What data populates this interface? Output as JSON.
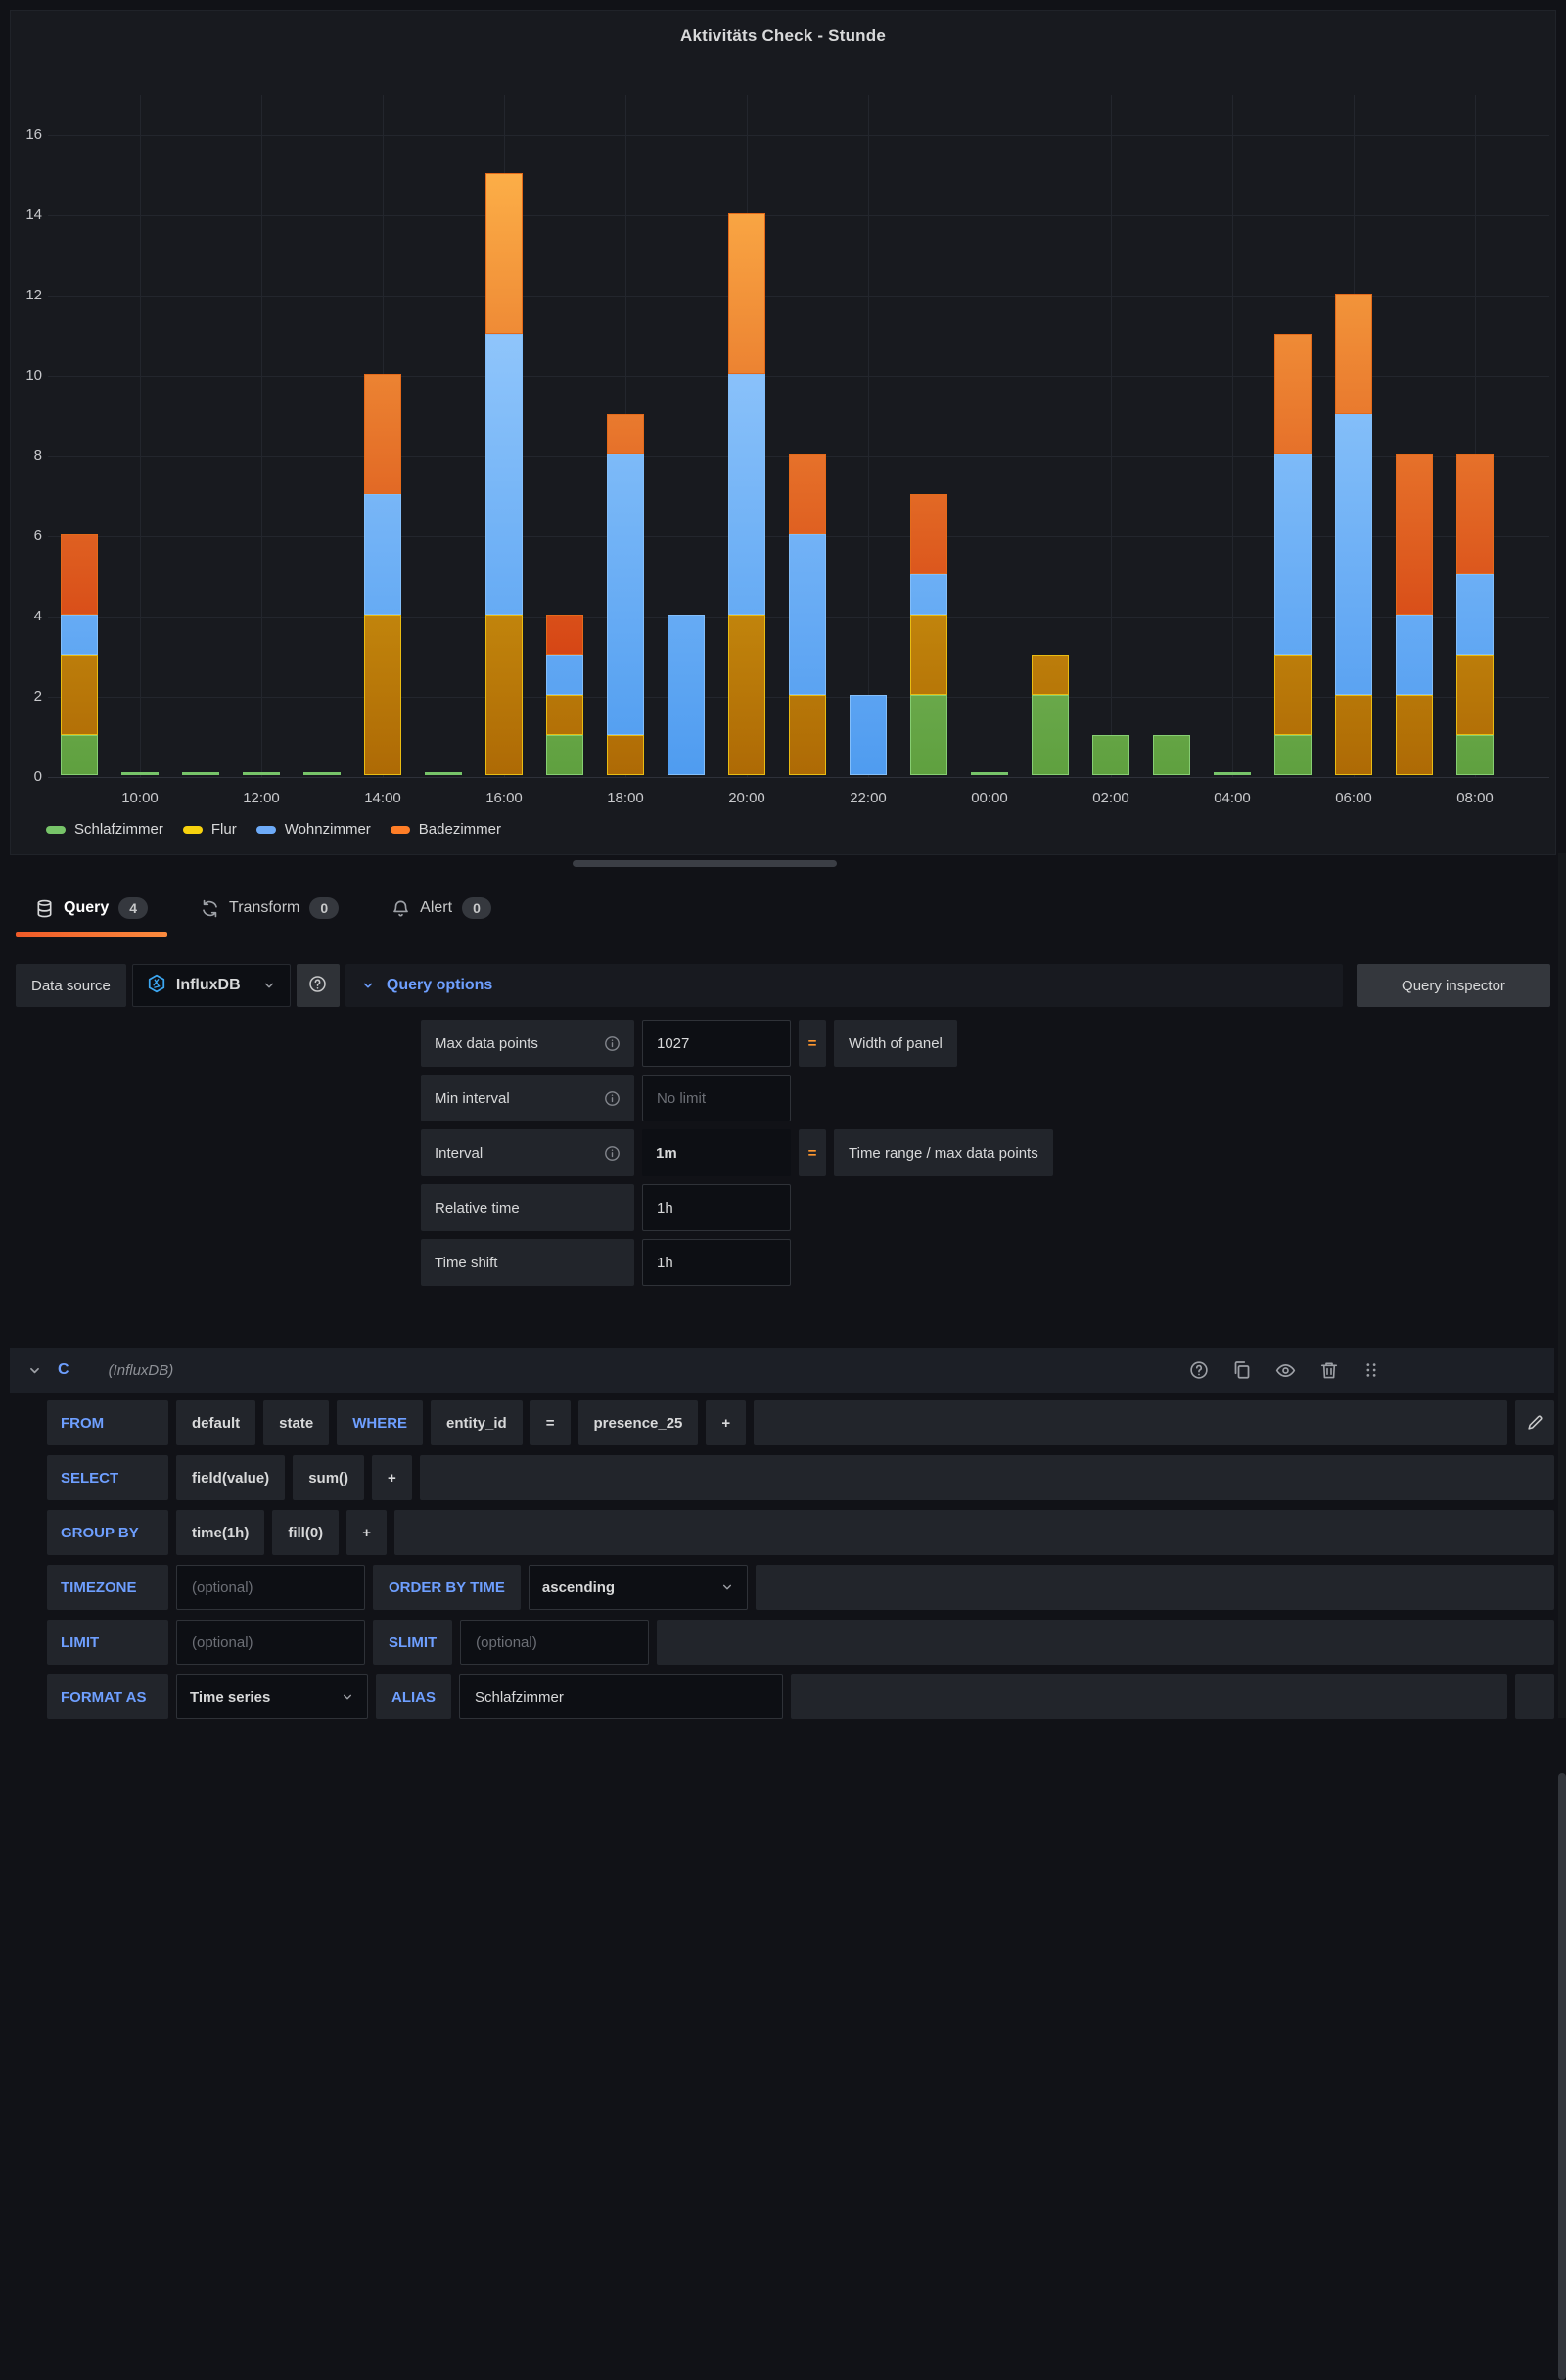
{
  "panel": {
    "title": "Aktivitäts Check - Stunde"
  },
  "chart_data": {
    "type": "bar",
    "stacked": true,
    "title": "Aktivitäts Check - Stunde",
    "x": [
      "09:00",
      "10:00",
      "11:00",
      "12:00",
      "13:00",
      "14:00",
      "15:00",
      "16:00",
      "17:00",
      "18:00",
      "19:00",
      "20:00",
      "21:00",
      "22:00",
      "23:00",
      "00:00",
      "01:00",
      "02:00",
      "03:00",
      "04:00",
      "05:00",
      "06:00",
      "07:00",
      "08:00"
    ],
    "x_tick_labels": [
      "10:00",
      "12:00",
      "14:00",
      "16:00",
      "18:00",
      "20:00",
      "22:00",
      "00:00",
      "02:00",
      "04:00",
      "06:00",
      "08:00"
    ],
    "ylim": [
      0,
      16
    ],
    "y_ticks": [
      0,
      2,
      4,
      6,
      8,
      10,
      12,
      14,
      16
    ],
    "grid": true,
    "legend_position": "bottom",
    "series": [
      {
        "name": "Schlafzimmer",
        "values": [
          1,
          0,
          0,
          0,
          0,
          0,
          0,
          0,
          1,
          0,
          0,
          0,
          0,
          0,
          2,
          0,
          2,
          1,
          1,
          0,
          1,
          0,
          0,
          1
        ]
      },
      {
        "name": "Flur",
        "values": [
          2,
          0,
          0,
          0,
          0,
          4,
          0,
          4,
          1,
          1,
          0,
          4,
          2,
          0,
          2,
          0,
          1,
          0,
          0,
          0,
          2,
          2,
          2,
          2
        ]
      },
      {
        "name": "Wohnzimmer",
        "values": [
          1,
          0,
          0,
          0,
          0,
          3,
          0,
          7,
          1,
          7,
          4,
          6,
          4,
          2,
          1,
          0,
          0,
          0,
          0,
          0,
          5,
          7,
          2,
          2
        ]
      },
      {
        "name": "Badezimmer",
        "values": [
          2,
          0,
          0,
          0,
          0,
          3,
          0,
          4,
          1,
          1,
          0,
          4,
          2,
          0,
          2,
          0,
          0,
          0,
          0,
          0,
          3,
          3,
          4,
          3
        ]
      }
    ],
    "series_colors": [
      {
        "name": "Schlafzimmer",
        "legend": "#77C469",
        "border": "#86CE72",
        "light": "#A8DB90",
        "dark": "#5FA03F"
      },
      {
        "name": "Flur",
        "legend": "#F7D20E",
        "border": "#E9BC12",
        "light": "#F5CB1F",
        "dark": "#AE6A05"
      },
      {
        "name": "Wohnzimmer",
        "legend": "#6DABF8",
        "border": "#83BEF9",
        "light": "#A6D4FF",
        "dark": "#4F9CF0"
      },
      {
        "name": "Badezimmer",
        "legend": "#FF7E27",
        "border": "#E46A1A",
        "light": "#FCAE47",
        "dark": "#CC2C08"
      }
    ]
  },
  "tabs": [
    {
      "label": "Query",
      "count": "4",
      "icon": "database-icon",
      "active": true
    },
    {
      "label": "Transform",
      "count": "0",
      "icon": "transform-icon",
      "active": false
    },
    {
      "label": "Alert",
      "count": "0",
      "icon": "bell-icon",
      "active": false
    }
  ],
  "datasource_row": {
    "label": "Data source",
    "name": "InfluxDB",
    "options_label": "Query options",
    "inspector_label": "Query inspector"
  },
  "query_options": {
    "rows": [
      {
        "label": "Max data points",
        "info": true,
        "value": "1027",
        "value_style": "input",
        "eq": "=",
        "note": "Width of panel"
      },
      {
        "label": "Min interval",
        "info": true,
        "value": "No limit",
        "value_style": "input-placeholder"
      },
      {
        "label": "Interval",
        "info": true,
        "value": "1m",
        "value_style": "plain",
        "eq": "=",
        "note": "Time range / max data points"
      },
      {
        "label": "Relative time",
        "info": false,
        "value": "1h",
        "value_style": "input"
      },
      {
        "label": "Time shift",
        "info": false,
        "value": "1h",
        "value_style": "input"
      }
    ]
  },
  "query_c": {
    "letter": "C",
    "datasource_label": "(InfluxDB)",
    "header_icons": [
      "help-icon",
      "copy-icon",
      "eye-icon",
      "trash-icon",
      "grip-icon"
    ],
    "rows": [
      {
        "name": "from",
        "items": [
          {
            "type": "kw",
            "label": "FROM"
          },
          {
            "type": "val",
            "label": "default"
          },
          {
            "type": "val",
            "label": "state"
          },
          {
            "type": "kwi",
            "label": "WHERE"
          },
          {
            "type": "val",
            "label": "entity_id"
          },
          {
            "type": "val",
            "label": "="
          },
          {
            "type": "val",
            "label": "presence_25"
          },
          {
            "type": "val",
            "label": "+"
          },
          {
            "type": "fill"
          },
          {
            "type": "iconbtn",
            "icon": "pencil-icon"
          }
        ]
      },
      {
        "name": "select",
        "items": [
          {
            "type": "kw",
            "label": "SELECT"
          },
          {
            "type": "val",
            "label": "field(value)"
          },
          {
            "type": "val",
            "label": "sum()"
          },
          {
            "type": "val",
            "label": "+"
          },
          {
            "type": "fill"
          }
        ]
      },
      {
        "name": "group-by",
        "items": [
          {
            "type": "kw",
            "label": "GROUP BY"
          },
          {
            "type": "val",
            "label": "time(1h)"
          },
          {
            "type": "val",
            "label": "fill(0)"
          },
          {
            "type": "val",
            "label": "+"
          },
          {
            "type": "fill"
          }
        ]
      },
      {
        "name": "timezone",
        "items": [
          {
            "type": "kw",
            "label": "TIMEZONE"
          },
          {
            "type": "input",
            "label": "(optional)",
            "placeholder": true
          },
          {
            "type": "kwi",
            "label": "ORDER BY TIME"
          },
          {
            "type": "select_wide",
            "label": "ascending"
          },
          {
            "type": "fill"
          }
        ]
      },
      {
        "name": "limit",
        "items": [
          {
            "type": "kw",
            "label": "LIMIT"
          },
          {
            "type": "input",
            "label": "(optional)",
            "placeholder": true
          },
          {
            "type": "kwi",
            "label": "SLIMIT"
          },
          {
            "type": "input",
            "label": "(optional)",
            "placeholder": true
          },
          {
            "type": "fill"
          }
        ]
      },
      {
        "name": "format-as",
        "items": [
          {
            "type": "kw",
            "label": "FORMAT AS"
          },
          {
            "type": "select",
            "label": "Time series"
          },
          {
            "type": "kwi",
            "label": "ALIAS"
          },
          {
            "type": "input_wide",
            "label": "Schlafzimmer"
          },
          {
            "type": "fill"
          },
          {
            "type": "iconbtn",
            "icon": null
          }
        ]
      }
    ]
  }
}
